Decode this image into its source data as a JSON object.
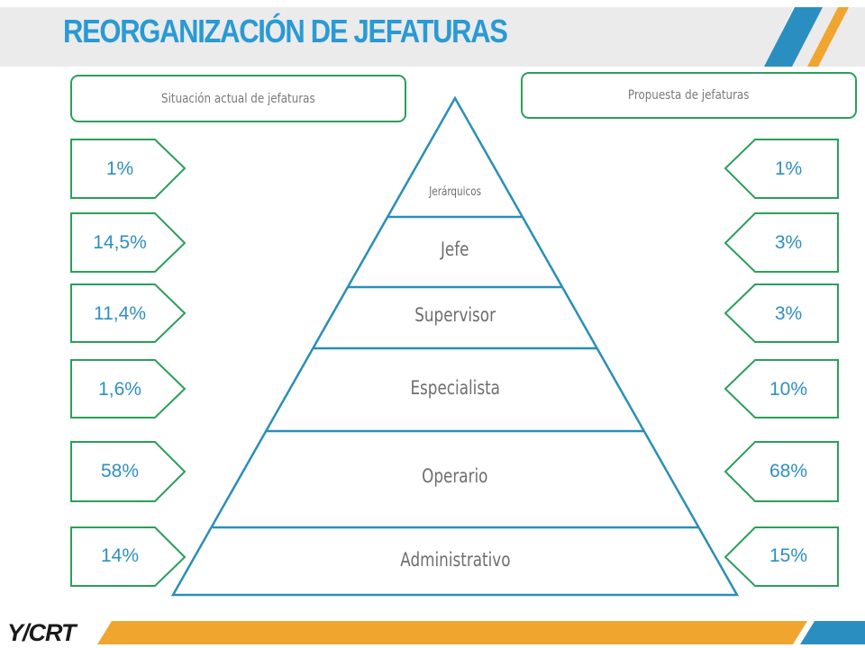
{
  "title": "REORGANIZACIÓN DE JEFATURAS",
  "left_header": "Situación actual de jefaturas",
  "right_header": "Propuesta de jefaturas",
  "tiers": [
    "Jerárquicos",
    "Jefe",
    "Supervisor",
    "Especialista",
    "Operario",
    "Administrativo"
  ],
  "current": [
    "1%",
    "14,5%",
    "11,4%",
    "1,6%",
    "58%",
    "14%"
  ],
  "proposed": [
    "1%",
    "3%",
    "3%",
    "10%",
    "68%",
    "15%"
  ],
  "logo": "Y/CRT",
  "colors": {
    "accent_blue": "#2a9ad4",
    "accent_orange": "#f0a52e",
    "border_green": "#2aa05a",
    "pyramid_stroke": "#2a8fb8"
  }
}
